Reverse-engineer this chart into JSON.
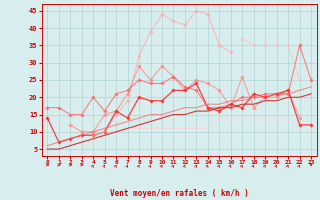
{
  "xlabel": "Vent moyen/en rafales ( km/h )",
  "background_color": "#d8eeee",
  "grid_color": "#aacccc",
  "x_values": [
    0,
    1,
    2,
    3,
    4,
    5,
    6,
    7,
    8,
    9,
    10,
    11,
    12,
    13,
    14,
    15,
    16,
    17,
    18,
    19,
    20,
    21,
    22,
    23
  ],
  "lines": [
    {
      "color": "#ffaaaa",
      "alpha": 0.75,
      "lw": 0.8,
      "marker": "D",
      "ms": 1.8,
      "y": [
        null,
        null,
        null,
        null,
        null,
        10,
        15,
        19,
        32,
        39,
        44,
        42,
        41,
        45,
        44,
        35,
        33,
        null,
        null,
        null,
        null,
        null,
        null,
        null
      ]
    },
    {
      "color": "#ff8888",
      "alpha": 0.8,
      "lw": 0.8,
      "marker": "D",
      "ms": 1.8,
      "y": [
        null,
        null,
        12,
        10,
        10,
        15,
        16,
        21,
        29,
        25,
        29,
        26,
        22,
        25,
        24,
        22,
        17,
        26,
        17,
        20,
        20,
        22,
        14,
        null
      ]
    },
    {
      "color": "#ff6666",
      "alpha": 0.8,
      "lw": 0.8,
      "marker": "D",
      "ms": 1.8,
      "y": [
        17,
        17,
        15,
        15,
        20,
        16,
        21,
        22,
        25,
        24,
        24,
        26,
        23,
        22,
        17,
        17,
        18,
        20,
        20,
        21,
        21,
        21,
        35,
        25
      ]
    },
    {
      "color": "#ff3333",
      "alpha": 0.95,
      "lw": 0.9,
      "marker": "D",
      "ms": 1.8,
      "y": [
        14,
        7,
        8,
        9,
        9,
        10,
        16,
        14,
        20,
        19,
        19,
        22,
        22,
        24,
        17,
        16,
        18,
        17,
        21,
        20,
        21,
        22,
        12,
        12
      ]
    },
    {
      "color": "#ffbbbb",
      "alpha": 0.7,
      "lw": 0.8,
      "marker": "D",
      "ms": 1.8,
      "y": [
        null,
        null,
        null,
        null,
        null,
        null,
        null,
        null,
        null,
        null,
        null,
        null,
        null,
        null,
        null,
        null,
        null,
        37,
        35,
        35,
        35,
        35,
        25,
        null
      ]
    },
    {
      "color": "#ffcccc",
      "alpha": 0.6,
      "lw": 0.8,
      "marker": null,
      "ms": 0,
      "y": [
        null,
        null,
        null,
        3,
        9,
        10,
        10,
        11,
        11,
        11,
        11,
        11,
        11,
        11,
        11,
        14,
        14,
        14,
        14,
        14,
        14,
        14,
        11,
        null
      ]
    },
    {
      "color": "#cc2222",
      "alpha": 0.9,
      "lw": 0.8,
      "marker": null,
      "ms": 0,
      "y": [
        5,
        5,
        6,
        7,
        8,
        9,
        10,
        11,
        12,
        13,
        14,
        15,
        15,
        16,
        16,
        17,
        17,
        18,
        18,
        19,
        19,
        20,
        20,
        21
      ]
    },
    {
      "color": "#ff5555",
      "alpha": 0.65,
      "lw": 0.8,
      "marker": null,
      "ms": 0,
      "y": [
        6,
        7,
        8,
        9,
        10,
        11,
        12,
        13,
        14,
        15,
        15,
        16,
        17,
        17,
        18,
        18,
        19,
        19,
        20,
        20,
        21,
        21,
        22,
        23
      ]
    }
  ],
  "arrow_angles": [
    0,
    0,
    0,
    0,
    45,
    45,
    45,
    45,
    45,
    45,
    45,
    45,
    45,
    45,
    45,
    45,
    45,
    45,
    45,
    45,
    45,
    45,
    45,
    -90
  ],
  "ylim": [
    3,
    47
  ],
  "xlim": [
    -0.5,
    23.5
  ],
  "yticks": [
    5,
    10,
    15,
    20,
    25,
    30,
    35,
    40,
    45
  ],
  "xticks": [
    0,
    1,
    2,
    3,
    4,
    5,
    6,
    7,
    8,
    9,
    10,
    11,
    12,
    13,
    14,
    15,
    16,
    17,
    18,
    19,
    20,
    21,
    22,
    23
  ],
  "tick_color": "#cc0000",
  "spine_color": "#cc0000",
  "xlabel_color": "#cc0000",
  "xlabel_fontsize": 5.5,
  "tick_fontsize": 4.5,
  "ytick_fontsize": 5.0
}
